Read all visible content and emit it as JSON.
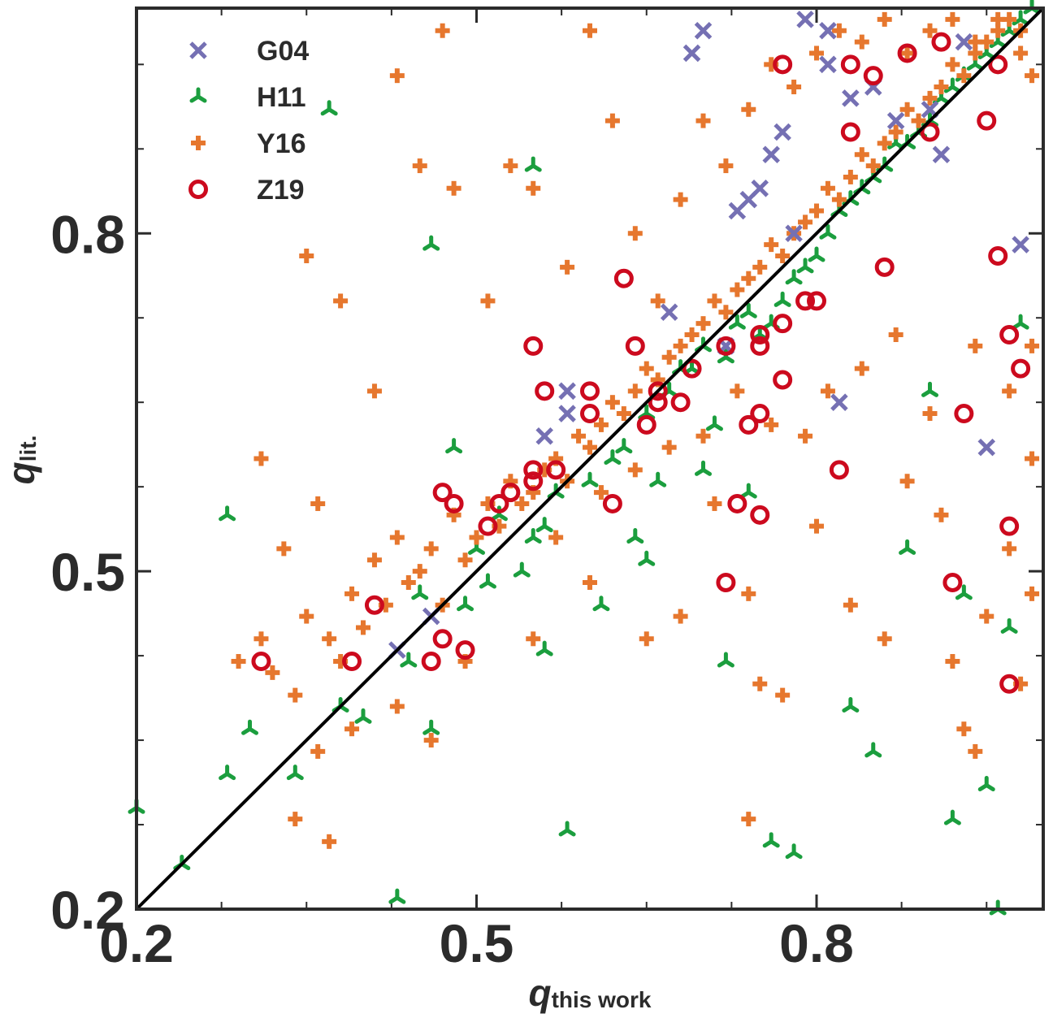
{
  "chart_data": {
    "type": "scatter",
    "title": "",
    "xlabel": {
      "symbol": "q",
      "subscript": "this work"
    },
    "ylabel": {
      "symbol": "q",
      "subscript": "lit."
    },
    "xlim": [
      0.2,
      1.0
    ],
    "ylim": [
      0.2,
      1.0
    ],
    "xticks": [
      0.2,
      0.5,
      0.8
    ],
    "yticks": [
      0.2,
      0.5,
      0.8
    ],
    "x_tick_labels": [
      "0.2",
      "0.5",
      "0.8"
    ],
    "y_tick_labels": [
      "0.2",
      "0.5",
      "0.8"
    ],
    "minor_tick_step": 0.075,
    "grid": false,
    "legend_position": "top-left",
    "reference_line": {
      "label": "1:1",
      "from": [
        0.2,
        0.2
      ],
      "to": [
        1.0,
        1.0
      ],
      "color": "#000000"
    },
    "series": [
      {
        "name": "G04",
        "marker": "x",
        "color": "#7570b3",
        "points": [
          [
            0.43,
            0.43
          ],
          [
            0.46,
            0.46
          ],
          [
            0.56,
            0.62
          ],
          [
            0.58,
            0.64
          ],
          [
            0.58,
            0.66
          ],
          [
            0.67,
            0.73
          ],
          [
            0.69,
            0.96
          ],
          [
            0.7,
            0.98
          ],
          [
            0.72,
            0.7
          ],
          [
            0.73,
            0.82
          ],
          [
            0.74,
            0.83
          ],
          [
            0.75,
            0.84
          ],
          [
            0.76,
            0.87
          ],
          [
            0.77,
            0.89
          ],
          [
            0.78,
            0.8
          ],
          [
            0.79,
            0.99
          ],
          [
            0.81,
            0.98
          ],
          [
            0.81,
            0.95
          ],
          [
            0.82,
            0.65
          ],
          [
            0.83,
            0.92
          ],
          [
            0.85,
            0.93
          ],
          [
            0.87,
            0.9
          ],
          [
            0.9,
            0.91
          ],
          [
            0.91,
            0.87
          ],
          [
            0.93,
            0.97
          ],
          [
            0.95,
            0.61
          ],
          [
            0.98,
            0.79
          ]
        ]
      },
      {
        "name": "H11",
        "marker": "tri",
        "color": "#1b9e3e",
        "points": [
          [
            0.2,
            0.29
          ],
          [
            0.24,
            0.24
          ],
          [
            0.28,
            0.55
          ],
          [
            0.28,
            0.32
          ],
          [
            0.3,
            0.36
          ],
          [
            0.34,
            0.32
          ],
          [
            0.37,
            0.91
          ],
          [
            0.38,
            0.38
          ],
          [
            0.4,
            0.37
          ],
          [
            0.43,
            0.21
          ],
          [
            0.44,
            0.42
          ],
          [
            0.45,
            0.48
          ],
          [
            0.46,
            0.36
          ],
          [
            0.46,
            0.79
          ],
          [
            0.48,
            0.61
          ],
          [
            0.49,
            0.47
          ],
          [
            0.5,
            0.52
          ],
          [
            0.51,
            0.49
          ],
          [
            0.52,
            0.55
          ],
          [
            0.54,
            0.5
          ],
          [
            0.55,
            0.53
          ],
          [
            0.55,
            0.86
          ],
          [
            0.56,
            0.43
          ],
          [
            0.56,
            0.54
          ],
          [
            0.57,
            0.57
          ],
          [
            0.58,
            0.27
          ],
          [
            0.6,
            0.58
          ],
          [
            0.62,
            0.6
          ],
          [
            0.63,
            0.61
          ],
          [
            0.64,
            0.53
          ],
          [
            0.65,
            0.64
          ],
          [
            0.66,
            0.58
          ],
          [
            0.67,
            0.66
          ],
          [
            0.68,
            0.68
          ],
          [
            0.69,
            0.68
          ],
          [
            0.7,
            0.7
          ],
          [
            0.71,
            0.63
          ],
          [
            0.72,
            0.69
          ],
          [
            0.73,
            0.72
          ],
          [
            0.74,
            0.73
          ],
          [
            0.75,
            0.71
          ],
          [
            0.76,
            0.72
          ],
          [
            0.77,
            0.74
          ],
          [
            0.78,
            0.76
          ],
          [
            0.79,
            0.77
          ],
          [
            0.8,
            0.78
          ],
          [
            0.81,
            0.8
          ],
          [
            0.82,
            0.82
          ],
          [
            0.83,
            0.83
          ],
          [
            0.84,
            0.84
          ],
          [
            0.85,
            0.85
          ],
          [
            0.86,
            0.86
          ],
          [
            0.87,
            0.88
          ],
          [
            0.88,
            0.88
          ],
          [
            0.89,
            0.89
          ],
          [
            0.9,
            0.9
          ],
          [
            0.91,
            0.92
          ],
          [
            0.92,
            0.93
          ],
          [
            0.93,
            0.94
          ],
          [
            0.94,
            0.95
          ],
          [
            0.95,
            0.96
          ],
          [
            0.96,
            0.97
          ],
          [
            0.97,
            0.98
          ],
          [
            0.98,
            0.99
          ],
          [
            0.99,
            1.0
          ],
          [
            0.85,
            0.34
          ],
          [
            0.88,
            0.52
          ],
          [
            0.9,
            0.66
          ],
          [
            0.93,
            0.48
          ],
          [
            0.95,
            0.31
          ],
          [
            0.96,
            0.2
          ],
          [
            0.97,
            0.45
          ],
          [
            0.78,
            0.25
          ],
          [
            0.76,
            0.26
          ],
          [
            0.74,
            0.57
          ],
          [
            0.7,
            0.59
          ],
          [
            0.65,
            0.51
          ],
          [
            0.61,
            0.47
          ],
          [
            0.72,
            0.42
          ],
          [
            0.83,
            0.38
          ],
          [
            0.92,
            0.28
          ],
          [
            0.98,
            0.72
          ]
        ]
      },
      {
        "name": "Y16",
        "marker": "plus",
        "color": "#e6772e",
        "points": [
          [
            0.29,
            0.42
          ],
          [
            0.31,
            0.44
          ],
          [
            0.32,
            0.41
          ],
          [
            0.33,
            0.52
          ],
          [
            0.34,
            0.39
          ],
          [
            0.35,
            0.46
          ],
          [
            0.36,
            0.56
          ],
          [
            0.37,
            0.44
          ],
          [
            0.38,
            0.42
          ],
          [
            0.39,
            0.48
          ],
          [
            0.4,
            0.45
          ],
          [
            0.41,
            0.51
          ],
          [
            0.42,
            0.47
          ],
          [
            0.43,
            0.53
          ],
          [
            0.44,
            0.49
          ],
          [
            0.45,
            0.5
          ],
          [
            0.46,
            0.52
          ],
          [
            0.47,
            0.47
          ],
          [
            0.48,
            0.55
          ],
          [
            0.49,
            0.51
          ],
          [
            0.5,
            0.53
          ],
          [
            0.51,
            0.56
          ],
          [
            0.52,
            0.54
          ],
          [
            0.53,
            0.58
          ],
          [
            0.54,
            0.56
          ],
          [
            0.55,
            0.57
          ],
          [
            0.56,
            0.59
          ],
          [
            0.57,
            0.6
          ],
          [
            0.58,
            0.58
          ],
          [
            0.59,
            0.62
          ],
          [
            0.6,
            0.61
          ],
          [
            0.61,
            0.63
          ],
          [
            0.62,
            0.65
          ],
          [
            0.63,
            0.64
          ],
          [
            0.64,
            0.66
          ],
          [
            0.65,
            0.68
          ],
          [
            0.66,
            0.67
          ],
          [
            0.67,
            0.69
          ],
          [
            0.68,
            0.7
          ],
          [
            0.69,
            0.71
          ],
          [
            0.7,
            0.72
          ],
          [
            0.71,
            0.74
          ],
          [
            0.72,
            0.73
          ],
          [
            0.73,
            0.75
          ],
          [
            0.74,
            0.76
          ],
          [
            0.75,
            0.77
          ],
          [
            0.76,
            0.79
          ],
          [
            0.77,
            0.78
          ],
          [
            0.78,
            0.8
          ],
          [
            0.79,
            0.81
          ],
          [
            0.8,
            0.82
          ],
          [
            0.81,
            0.84
          ],
          [
            0.82,
            0.83
          ],
          [
            0.83,
            0.85
          ],
          [
            0.84,
            0.87
          ],
          [
            0.85,
            0.86
          ],
          [
            0.86,
            0.88
          ],
          [
            0.87,
            0.89
          ],
          [
            0.88,
            0.91
          ],
          [
            0.89,
            0.9
          ],
          [
            0.9,
            0.92
          ],
          [
            0.91,
            0.93
          ],
          [
            0.92,
            0.95
          ],
          [
            0.93,
            0.94
          ],
          [
            0.94,
            0.96
          ],
          [
            0.95,
            0.97
          ],
          [
            0.96,
            0.98
          ],
          [
            0.97,
            0.99
          ],
          [
            0.98,
            0.96
          ],
          [
            0.99,
            0.94
          ],
          [
            0.31,
            0.6
          ],
          [
            0.35,
            0.78
          ],
          [
            0.38,
            0.74
          ],
          [
            0.41,
            0.66
          ],
          [
            0.43,
            0.94
          ],
          [
            0.45,
            0.86
          ],
          [
            0.47,
            0.98
          ],
          [
            0.48,
            0.84
          ],
          [
            0.51,
            0.74
          ],
          [
            0.53,
            0.86
          ],
          [
            0.55,
            0.84
          ],
          [
            0.58,
            0.77
          ],
          [
            0.6,
            0.98
          ],
          [
            0.62,
            0.9
          ],
          [
            0.64,
            0.8
          ],
          [
            0.66,
            0.74
          ],
          [
            0.68,
            0.83
          ],
          [
            0.7,
            0.9
          ],
          [
            0.72,
            0.86
          ],
          [
            0.74,
            0.91
          ],
          [
            0.76,
            0.95
          ],
          [
            0.78,
            0.93
          ],
          [
            0.8,
            0.96
          ],
          [
            0.82,
            0.98
          ],
          [
            0.84,
            0.97
          ],
          [
            0.86,
            0.99
          ],
          [
            0.88,
            0.96
          ],
          [
            0.9,
            0.98
          ],
          [
            0.92,
            0.99
          ],
          [
            0.94,
            0.97
          ],
          [
            0.96,
            0.99
          ],
          [
            0.98,
            0.98
          ],
          [
            0.55,
            0.44
          ],
          [
            0.6,
            0.49
          ],
          [
            0.65,
            0.44
          ],
          [
            0.68,
            0.46
          ],
          [
            0.71,
            0.56
          ],
          [
            0.74,
            0.48
          ],
          [
            0.77,
            0.39
          ],
          [
            0.8,
            0.54
          ],
          [
            0.83,
            0.47
          ],
          [
            0.86,
            0.44
          ],
          [
            0.88,
            0.58
          ],
          [
            0.91,
            0.55
          ],
          [
            0.93,
            0.36
          ],
          [
            0.95,
            0.46
          ],
          [
            0.97,
            0.52
          ],
          [
            0.99,
            0.6
          ],
          [
            0.99,
            0.48
          ],
          [
            0.97,
            0.66
          ],
          [
            0.94,
            0.7
          ],
          [
            0.9,
            0.64
          ],
          [
            0.87,
            0.71
          ],
          [
            0.84,
            0.68
          ],
          [
            0.81,
            0.66
          ],
          [
            0.79,
            0.62
          ],
          [
            0.76,
            0.63
          ],
          [
            0.73,
            0.66
          ],
          [
            0.7,
            0.62
          ],
          [
            0.67,
            0.61
          ],
          [
            0.64,
            0.59
          ],
          [
            0.61,
            0.57
          ],
          [
            0.57,
            0.53
          ],
          [
            0.74,
            0.28
          ],
          [
            0.75,
            0.4
          ],
          [
            0.92,
            0.42
          ],
          [
            0.94,
            0.34
          ],
          [
            0.98,
            0.4
          ],
          [
            0.99,
            0.7
          ],
          [
            0.43,
            0.38
          ],
          [
            0.39,
            0.36
          ],
          [
            0.36,
            0.34
          ],
          [
            0.34,
            0.28
          ],
          [
            0.37,
            0.26
          ],
          [
            0.46,
            0.35
          ],
          [
            0.49,
            0.42
          ]
        ]
      },
      {
        "name": "Z19",
        "marker": "circle",
        "color": "#cc0a1e",
        "points": [
          [
            0.31,
            0.42
          ],
          [
            0.39,
            0.42
          ],
          [
            0.41,
            0.47
          ],
          [
            0.46,
            0.42
          ],
          [
            0.47,
            0.57
          ],
          [
            0.47,
            0.44
          ],
          [
            0.48,
            0.56
          ],
          [
            0.49,
            0.43
          ],
          [
            0.51,
            0.54
          ],
          [
            0.52,
            0.56
          ],
          [
            0.53,
            0.57
          ],
          [
            0.55,
            0.58
          ],
          [
            0.55,
            0.59
          ],
          [
            0.55,
            0.7
          ],
          [
            0.56,
            0.66
          ],
          [
            0.57,
            0.59
          ],
          [
            0.6,
            0.66
          ],
          [
            0.6,
            0.64
          ],
          [
            0.62,
            0.56
          ],
          [
            0.63,
            0.76
          ],
          [
            0.64,
            0.7
          ],
          [
            0.65,
            0.63
          ],
          [
            0.66,
            0.66
          ],
          [
            0.66,
            0.65
          ],
          [
            0.68,
            0.65
          ],
          [
            0.69,
            0.68
          ],
          [
            0.72,
            0.49
          ],
          [
            0.72,
            0.7
          ],
          [
            0.73,
            0.56
          ],
          [
            0.74,
            0.63
          ],
          [
            0.75,
            0.64
          ],
          [
            0.75,
            0.55
          ],
          [
            0.75,
            0.71
          ],
          [
            0.75,
            0.7
          ],
          [
            0.77,
            0.95
          ],
          [
            0.77,
            0.72
          ],
          [
            0.77,
            0.67
          ],
          [
            0.79,
            0.74
          ],
          [
            0.8,
            0.74
          ],
          [
            0.82,
            0.59
          ],
          [
            0.83,
            0.89
          ],
          [
            0.83,
            0.95
          ],
          [
            0.85,
            0.94
          ],
          [
            0.86,
            0.77
          ],
          [
            0.88,
            0.96
          ],
          [
            0.9,
            0.89
          ],
          [
            0.91,
            0.97
          ],
          [
            0.92,
            0.49
          ],
          [
            0.93,
            0.64
          ],
          [
            0.95,
            0.9
          ],
          [
            0.96,
            0.95
          ],
          [
            0.96,
            0.78
          ],
          [
            0.97,
            0.71
          ],
          [
            0.97,
            0.54
          ],
          [
            0.97,
            0.4
          ],
          [
            0.98,
            0.68
          ]
        ]
      }
    ]
  }
}
